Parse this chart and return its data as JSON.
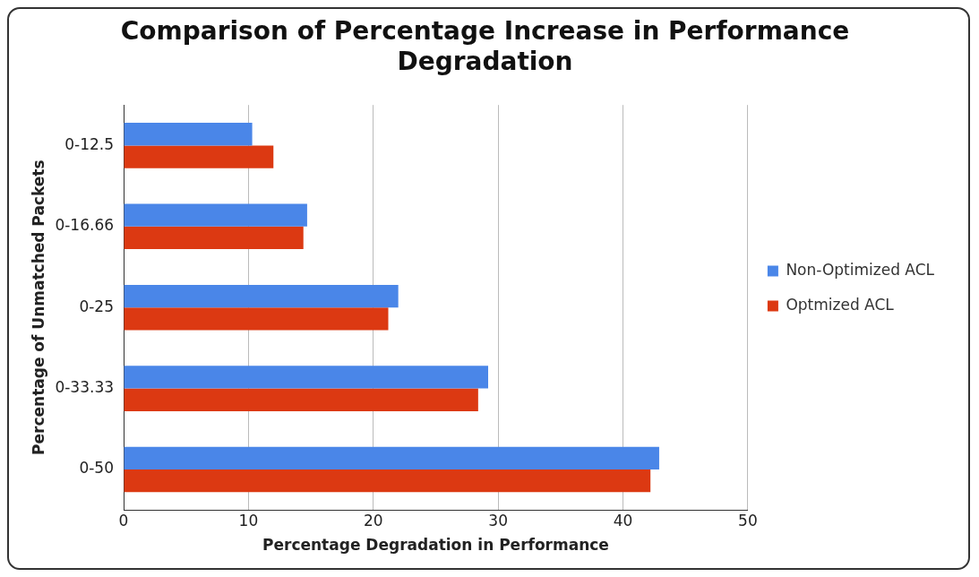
{
  "chart_data": {
    "type": "bar",
    "orientation": "horizontal",
    "title": "Comparison of Percentage Increase in Performance Degradation",
    "xlabel": "Percentage Degradation in Performance",
    "ylabel": "Percentage of Unmatched Packets",
    "categories": [
      "0-12.5",
      "0-16.66",
      "0-25",
      "0-33.33",
      "0-50"
    ],
    "series": [
      {
        "name": "Non-Optimized ACL",
        "color": "#4a86e8",
        "values": [
          10.3,
          14.7,
          22.0,
          29.2,
          42.9
        ]
      },
      {
        "name": "Optmized ACL",
        "color": "#dc3912",
        "values": [
          12.0,
          14.4,
          21.2,
          28.4,
          42.2
        ]
      }
    ],
    "xlim": [
      0,
      50
    ],
    "xticks": [
      0,
      10,
      20,
      30,
      40,
      50
    ],
    "grid": "x",
    "legend": "right"
  }
}
